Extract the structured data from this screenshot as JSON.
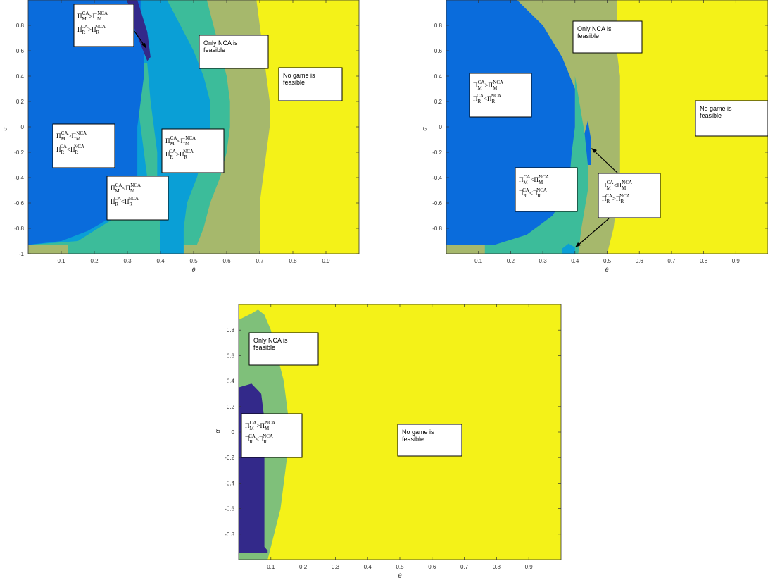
{
  "colors": {
    "yellow": "#f4f218",
    "green": "#a6b86c",
    "lightgreen": "#7fc07a",
    "teal": "#3cbc9a",
    "cyan": "#0a9fd6",
    "blue": "#0a6cdc",
    "navy": "#33298a"
  },
  "chart_data": [
    {
      "type": "heatmap",
      "xlabel": "θ",
      "ylabel": "α",
      "xlim": [
        0,
        1
      ],
      "ylim": [
        -1,
        1
      ],
      "xticks": [
        "0.1",
        "0.2",
        "0.3",
        "0.4",
        "0.5",
        "0.6",
        "0.7",
        "0.8",
        "0.9"
      ],
      "yticks": [
        "0.8",
        "0.6",
        "0.4",
        "0.2",
        "0",
        "-0.2",
        "-0.4",
        "-0.6",
        "-0.8",
        "-1"
      ],
      "regions": [
        {
          "color": "green",
          "boundary": [
            [
              0.69,
              1
            ],
            [
              0.7,
              0.8
            ],
            [
              0.71,
              0.6
            ],
            [
              0.72,
              0.4
            ],
            [
              0.73,
              0.2
            ],
            [
              0.73,
              0
            ],
            [
              0.72,
              -0.2
            ],
            [
              0.71,
              -0.4
            ],
            [
              0.7,
              -0.6
            ],
            [
              0.7,
              -0.8
            ],
            [
              0.7,
              -1
            ],
            [
              0,
              -1
            ],
            [
              0,
              1
            ]
          ]
        },
        {
          "color": "teal",
          "boundary": [
            [
              0.54,
              1
            ],
            [
              0.56,
              0.8
            ],
            [
              0.58,
              0.6
            ],
            [
              0.6,
              0.4
            ],
            [
              0.61,
              0.2
            ],
            [
              0.61,
              0
            ],
            [
              0.6,
              -0.2
            ],
            [
              0.58,
              -0.4
            ],
            [
              0.55,
              -0.6
            ],
            [
              0.53,
              -0.8
            ],
            [
              0.51,
              -0.93
            ],
            [
              0,
              -0.93
            ],
            [
              0,
              1
            ]
          ]
        },
        {
          "color": "cyan",
          "boundary": [
            [
              0.42,
              1
            ],
            [
              0.46,
              0.8
            ],
            [
              0.5,
              0.6
            ],
            [
              0.53,
              0.4
            ],
            [
              0.55,
              0.2
            ],
            [
              0.55,
              0
            ],
            [
              0.53,
              -0.2
            ],
            [
              0.51,
              -0.4
            ],
            [
              0.48,
              -0.6
            ],
            [
              0.47,
              -0.8
            ],
            [
              0.47,
              -1
            ],
            [
              0,
              -1
            ],
            [
              0,
              1
            ]
          ]
        },
        {
          "color": "teal",
          "boundary": [
            [
              0.26,
              -0.72
            ],
            [
              0.31,
              -0.62
            ],
            [
              0.36,
              -0.5
            ],
            [
              0.4,
              -0.4
            ],
            [
              0.4,
              -1
            ],
            [
              0.0,
              -1
            ],
            [
              0.0,
              -0.93
            ],
            [
              0.15,
              -0.9
            ]
          ]
        },
        {
          "color": "teal",
          "boundary": [
            [
              0.36,
              0.5
            ],
            [
              0.37,
              0.2
            ],
            [
              0.38,
              0
            ],
            [
              0.39,
              -0.2
            ],
            [
              0.39,
              -0.4
            ],
            [
              0.36,
              -0.4
            ],
            [
              0.35,
              -0.2
            ],
            [
              0.34,
              0
            ],
            [
              0.33,
              0.2
            ],
            [
              0.34,
              0.5
            ]
          ]
        },
        {
          "color": "blue",
          "boundary": [
            [
              0,
              1
            ],
            [
              0.34,
              1
            ],
            [
              0.34,
              0.8
            ],
            [
              0.35,
              0.6
            ],
            [
              0.35,
              0.4
            ],
            [
              0.34,
              0.2
            ],
            [
              0.33,
              0
            ],
            [
              0.33,
              -0.2
            ],
            [
              0.33,
              -0.4
            ],
            [
              0.31,
              -0.55
            ],
            [
              0.26,
              -0.7
            ],
            [
              0.18,
              -0.82
            ],
            [
              0.1,
              -0.9
            ],
            [
              0,
              -0.93
            ]
          ]
        },
        {
          "color": "navy",
          "boundary": [
            [
              0.3,
              1
            ],
            [
              0.33,
              1
            ],
            [
              0.36,
              0.75
            ],
            [
              0.37,
              0.55
            ],
            [
              0.36,
              0.52
            ],
            [
              0.34,
              0.65
            ],
            [
              0.31,
              0.85
            ]
          ]
        },
        {
          "color": "green",
          "boundary": [
            [
              0,
              -0.93
            ],
            [
              0.12,
              -0.93
            ],
            [
              0.12,
              -1
            ],
            [
              0,
              -1
            ]
          ]
        }
      ],
      "annotations": [
        {
          "kind": "payoff",
          "text": "ΠMCA>ΠMNCA / ΠRCA>ΠRNCA",
          "lines": [
            [
              "Π",
              "M",
              "CA",
              ">",
              "Π",
              "M",
              "NCA"
            ],
            [
              "Π",
              "R",
              "CA",
              ">",
              "Π",
              "R",
              "NCA"
            ]
          ]
        },
        {
          "kind": "text",
          "lines": [
            "Only NCA is",
            "feasible"
          ]
        },
        {
          "kind": "text",
          "lines": [
            "No game is",
            "feasible"
          ]
        },
        {
          "kind": "payoff",
          "lines": [
            [
              "Π",
              "M",
              "CA",
              ">",
              "Π",
              "M",
              "NCA"
            ],
            [
              "Π",
              "R",
              "CA",
              "<",
              "Π",
              "R",
              "NCA"
            ]
          ]
        },
        {
          "kind": "payoff",
          "lines": [
            [
              "Π",
              "M",
              "CA",
              "<",
              "Π",
              "M",
              "NCA"
            ],
            [
              "Π",
              "R",
              "CA",
              ">",
              "Π",
              "R",
              "NCA"
            ]
          ]
        },
        {
          "kind": "payoff",
          "lines": [
            [
              "Π",
              "M",
              "CA",
              "<",
              "Π",
              "M",
              "NCA"
            ],
            [
              "Π",
              "R",
              "CA",
              "<",
              "Π",
              "R",
              "NCA"
            ]
          ]
        }
      ]
    },
    {
      "type": "heatmap",
      "xlabel": "θ",
      "ylabel": "α",
      "xlim": [
        0,
        1
      ],
      "ylim": [
        -1,
        1
      ],
      "xticks": [
        "0.1",
        "0.2",
        "0.3",
        "0.4",
        "0.5",
        "0.6",
        "0.7",
        "0.8",
        "0.9"
      ],
      "yticks": [
        "0.8",
        "0.6",
        "0.4",
        "0.2",
        "0",
        "-0.2",
        "-0.4",
        "-0.6",
        "-0.8"
      ],
      "annotations": [
        {
          "kind": "text",
          "lines": [
            "Only NCA is",
            "feasible"
          ]
        },
        {
          "kind": "payoff",
          "lines": [
            [
              "Π",
              "M",
              "CA",
              ">",
              "Π",
              "M",
              "NCA"
            ],
            [
              "Π",
              "R",
              "CA",
              "<",
              "Π",
              "R",
              "NCA"
            ]
          ]
        },
        {
          "kind": "text",
          "lines": [
            "No game is",
            "feasible"
          ]
        },
        {
          "kind": "payoff",
          "lines": [
            [
              "Π",
              "M",
              "CA",
              "<",
              "Π",
              "M",
              "NCA"
            ],
            [
              "Π",
              "R",
              "CA",
              "<",
              "Π",
              "R",
              "NCA"
            ]
          ]
        },
        {
          "kind": "payoff",
          "lines": [
            [
              "Π",
              "M",
              "CA",
              "<",
              "Π",
              "M",
              "NCA"
            ],
            [
              "Π",
              "R",
              "CA",
              ">",
              "Π",
              "R",
              "NCA"
            ]
          ]
        }
      ]
    },
    {
      "type": "heatmap",
      "xlabel": "θ",
      "ylabel": "α",
      "xlim": [
        0,
        1
      ],
      "ylim": [
        -1,
        1
      ],
      "xticks": [
        "0.1",
        "0.2",
        "0.3",
        "0.4",
        "0.5",
        "0.6",
        "0.7",
        "0.8",
        "0.9"
      ],
      "yticks": [
        "0.8",
        "0.6",
        "0.4",
        "0.2",
        "0",
        "-0.2",
        "-0.4",
        "-0.6",
        "-0.8"
      ],
      "annotations": [
        {
          "kind": "text",
          "lines": [
            "Only NCA is",
            "feasible"
          ]
        },
        {
          "kind": "payoff",
          "lines": [
            [
              "Π",
              "M",
              "CA",
              ">",
              "Π",
              "M",
              "NCA"
            ],
            [
              "Π",
              "R",
              "CA",
              "<",
              "Π",
              "R",
              "NCA"
            ]
          ]
        },
        {
          "kind": "text",
          "lines": [
            "No game is",
            "feasible"
          ]
        }
      ]
    }
  ]
}
